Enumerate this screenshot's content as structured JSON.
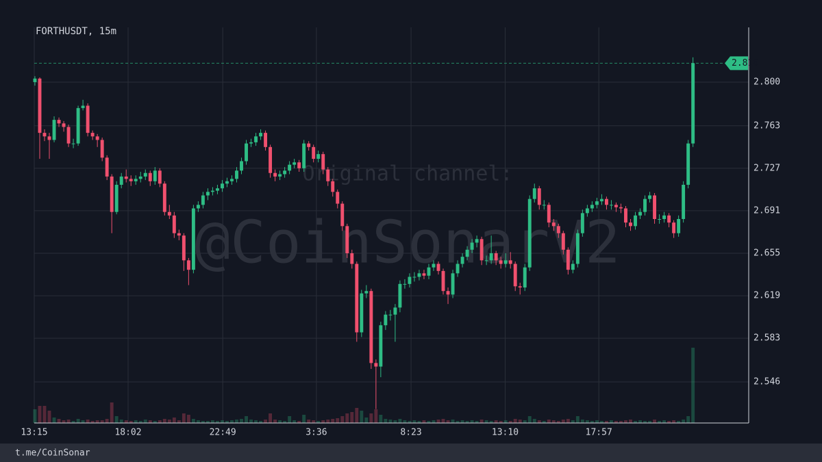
{
  "chart_data": {
    "type": "candlestick",
    "title": "FORTHUSDT, 15m",
    "watermark": [
      "Original channel:",
      "@CoinSonarV2"
    ],
    "up_color": "#2ebd85",
    "down_color": "#f0506e",
    "grid": true,
    "ylim": [
      2.5112,
      2.8394
    ],
    "yticks": [
      2.546,
      2.583,
      2.619,
      2.655,
      2.691,
      2.727,
      2.763,
      {
        "value": 2.8,
        "label": "2.800"
      }
    ],
    "xlim": [
      -0.14,
      148.6
    ],
    "xticks": [
      {
        "value": -0.14,
        "label": "13:15"
      },
      {
        "value": 19.4,
        "label": "18:02"
      },
      {
        "value": 39.1,
        "label": "22:49"
      },
      {
        "value": 58.6,
        "label": "3:36"
      },
      {
        "value": 78.3,
        "label": "8:23"
      },
      {
        "value": 97.9,
        "label": "13:10"
      },
      {
        "value": 117.4,
        "label": "17:57"
      }
    ],
    "open": [
      2.8,
      2.803,
      2.757,
      2.754,
      2.751,
      2.768,
      2.765,
      2.762,
      2.748,
      2.748,
      2.778,
      2.78,
      2.757,
      2.754,
      2.751,
      2.736,
      2.72,
      2.69,
      2.713,
      2.72,
      2.718,
      2.716,
      2.718,
      2.72,
      2.723,
      2.716,
      2.725,
      2.714,
      2.69,
      2.687,
      2.672,
      2.67,
      2.649,
      2.641,
      2.693,
      2.696,
      2.704,
      2.707,
      2.708,
      2.71,
      2.714,
      2.716,
      2.718,
      2.725,
      2.733,
      2.748,
      2.749,
      2.754,
      2.757,
      2.745,
      2.723,
      2.72,
      2.722,
      2.725,
      2.73,
      2.732,
      2.727,
      2.748,
      2.745,
      2.735,
      2.739,
      2.726,
      2.716,
      2.707,
      2.697,
      2.678,
      2.655,
      2.646,
      2.588,
      2.621,
      2.623,
      2.562,
      2.559,
      2.594,
      2.603,
      2.603,
      2.609,
      2.629,
      2.629,
      2.635,
      2.635,
      2.638,
      2.636,
      2.643,
      2.646,
      2.64,
      2.623,
      2.62,
      2.638,
      2.646,
      2.652,
      2.658,
      2.664,
      2.667,
      2.649,
      2.649,
      2.655,
      2.649,
      2.646,
      2.649,
      2.646,
      2.627,
      2.626,
      2.643,
      2.701,
      2.71,
      2.696,
      2.696,
      2.681,
      2.678,
      2.672,
      2.658,
      2.641,
      2.646,
      2.672,
      2.689,
      2.693,
      2.696,
      2.699,
      2.701,
      2.696,
      2.696,
      2.694,
      2.693,
      2.681,
      2.678,
      2.687,
      2.69,
      2.701,
      2.704,
      2.684,
      2.684,
      2.687,
      2.681,
      2.672,
      2.684,
      2.713,
      2.748
    ],
    "high": [
      2.805,
      2.804,
      2.76,
      2.757,
      2.771,
      2.77,
      2.767,
      2.764,
      2.752,
      2.78,
      2.785,
      2.782,
      2.759,
      2.756,
      2.753,
      2.738,
      2.722,
      2.716,
      2.723,
      2.726,
      2.721,
      2.721,
      2.724,
      2.726,
      2.725,
      2.728,
      2.727,
      2.716,
      2.696,
      2.69,
      2.675,
      2.672,
      2.651,
      2.696,
      2.699,
      2.707,
      2.71,
      2.711,
      2.713,
      2.717,
      2.719,
      2.721,
      2.728,
      2.736,
      2.751,
      2.752,
      2.757,
      2.76,
      2.759,
      2.747,
      2.726,
      2.725,
      2.728,
      2.733,
      2.735,
      2.734,
      2.751,
      2.75,
      2.747,
      2.742,
      2.741,
      2.728,
      2.718,
      2.709,
      2.699,
      2.68,
      2.658,
      2.648,
      2.624,
      2.628,
      2.625,
      2.565,
      2.597,
      2.606,
      2.607,
      2.612,
      2.632,
      2.633,
      2.638,
      2.639,
      2.641,
      2.641,
      2.646,
      2.649,
      2.648,
      2.642,
      2.626,
      2.641,
      2.649,
      2.655,
      2.661,
      2.667,
      2.67,
      2.669,
      2.653,
      2.67,
      2.657,
      2.652,
      2.655,
      2.656,
      2.648,
      2.63,
      2.646,
      2.704,
      2.714,
      2.712,
      2.7,
      2.698,
      2.684,
      2.68,
      2.674,
      2.66,
      2.649,
      2.675,
      2.692,
      2.696,
      2.699,
      2.702,
      2.705,
      2.703,
      2.7,
      2.698,
      2.697,
      2.695,
      2.684,
      2.69,
      2.693,
      2.704,
      2.707,
      2.706,
      2.688,
      2.69,
      2.689,
      2.683,
      2.687,
      2.716,
      2.751,
      2.821
    ],
    "low": [
      2.797,
      2.735,
      2.75,
      2.735,
      2.749,
      2.762,
      2.758,
      2.745,
      2.744,
      2.746,
      2.776,
      2.754,
      2.751,
      2.745,
      2.733,
      2.717,
      2.672,
      2.688,
      2.71,
      2.715,
      2.712,
      2.713,
      2.715,
      2.717,
      2.712,
      2.713,
      2.711,
      2.687,
      2.684,
      2.668,
      2.666,
      2.64,
      2.628,
      2.638,
      2.69,
      2.693,
      2.7,
      2.704,
      2.705,
      2.707,
      2.711,
      2.713,
      2.715,
      2.722,
      2.73,
      2.745,
      2.746,
      2.751,
      2.742,
      2.719,
      2.716,
      2.717,
      2.719,
      2.722,
      2.727,
      2.724,
      2.724,
      2.742,
      2.732,
      2.732,
      2.722,
      2.712,
      2.703,
      2.693,
      2.674,
      2.651,
      2.642,
      2.58,
      2.584,
      2.617,
      2.557,
      2.523,
      2.55,
      2.59,
      2.598,
      2.58,
      2.605,
      2.625,
      2.626,
      2.631,
      2.632,
      2.633,
      2.633,
      2.64,
      2.637,
      2.62,
      2.612,
      2.617,
      2.635,
      2.643,
      2.649,
      2.655,
      2.66,
      2.645,
      2.645,
      2.646,
      2.645,
      2.642,
      2.643,
      2.642,
      2.623,
      2.62,
      2.623,
      2.64,
      2.698,
      2.692,
      2.692,
      2.677,
      2.674,
      2.668,
      2.654,
      2.637,
      2.638,
      2.643,
      2.669,
      2.686,
      2.69,
      2.693,
      2.696,
      2.692,
      2.692,
      2.69,
      2.689,
      2.677,
      2.674,
      2.675,
      2.684,
      2.687,
      2.698,
      2.68,
      2.68,
      2.681,
      2.677,
      2.668,
      2.669,
      2.681,
      2.71,
      2.745
    ],
    "close": [
      2.803,
      2.757,
      2.754,
      2.751,
      2.768,
      2.765,
      2.762,
      2.748,
      2.748,
      2.778,
      2.78,
      2.757,
      2.754,
      2.751,
      2.736,
      2.72,
      2.69,
      2.713,
      2.72,
      2.718,
      2.716,
      2.718,
      2.72,
      2.723,
      2.716,
      2.725,
      2.714,
      2.69,
      2.687,
      2.672,
      2.67,
      2.649,
      2.641,
      2.693,
      2.696,
      2.704,
      2.707,
      2.708,
      2.71,
      2.714,
      2.716,
      2.718,
      2.725,
      2.733,
      2.748,
      2.749,
      2.754,
      2.757,
      2.745,
      2.723,
      2.72,
      2.722,
      2.725,
      2.73,
      2.732,
      2.727,
      2.748,
      2.745,
      2.735,
      2.739,
      2.726,
      2.716,
      2.707,
      2.697,
      2.678,
      2.655,
      2.646,
      2.588,
      2.621,
      2.623,
      2.562,
      2.559,
      2.594,
      2.603,
      2.603,
      2.609,
      2.629,
      2.629,
      2.635,
      2.635,
      2.638,
      2.636,
      2.643,
      2.646,
      2.64,
      2.623,
      2.62,
      2.638,
      2.646,
      2.652,
      2.658,
      2.664,
      2.667,
      2.649,
      2.649,
      2.655,
      2.649,
      2.646,
      2.649,
      2.646,
      2.627,
      2.626,
      2.643,
      2.701,
      2.71,
      2.696,
      2.696,
      2.681,
      2.678,
      2.672,
      2.658,
      2.641,
      2.646,
      2.672,
      2.689,
      2.693,
      2.696,
      2.699,
      2.701,
      2.696,
      2.696,
      2.694,
      2.693,
      2.681,
      2.678,
      2.687,
      2.69,
      2.701,
      2.704,
      2.684,
      2.684,
      2.687,
      2.681,
      2.672,
      2.684,
      2.713,
      2.748,
      2.816
    ],
    "volume": [
      20,
      25,
      25,
      18,
      8,
      6,
      4,
      5,
      3,
      6,
      4,
      5,
      3,
      4,
      4,
      6,
      30,
      10,
      5,
      4,
      3,
      4,
      3,
      5,
      4,
      3,
      4,
      6,
      5,
      8,
      4,
      14,
      12,
      6,
      4,
      3,
      3,
      4,
      3,
      4,
      3,
      4,
      5,
      6,
      10,
      5,
      4,
      3,
      5,
      14,
      5,
      4,
      3,
      10,
      4,
      3,
      12,
      5,
      4,
      3,
      4,
      5,
      6,
      7,
      10,
      14,
      16,
      22,
      18,
      8,
      14,
      20,
      12,
      6,
      5,
      4,
      6,
      4,
      3,
      4,
      3,
      4,
      3,
      4,
      5,
      6,
      4,
      5,
      3,
      4,
      3,
      4,
      3,
      5,
      4,
      3,
      4,
      3,
      4,
      3,
      6,
      5,
      4,
      10,
      6,
      4,
      3,
      5,
      4,
      3,
      5,
      6,
      4,
      10,
      5,
      4,
      3,
      4,
      3,
      3,
      4,
      3,
      3,
      4,
      5,
      3,
      4,
      3,
      3,
      5,
      3,
      4,
      3,
      4,
      3,
      5,
      10,
      110
    ]
  },
  "footer": "t.me/CoinSonar"
}
